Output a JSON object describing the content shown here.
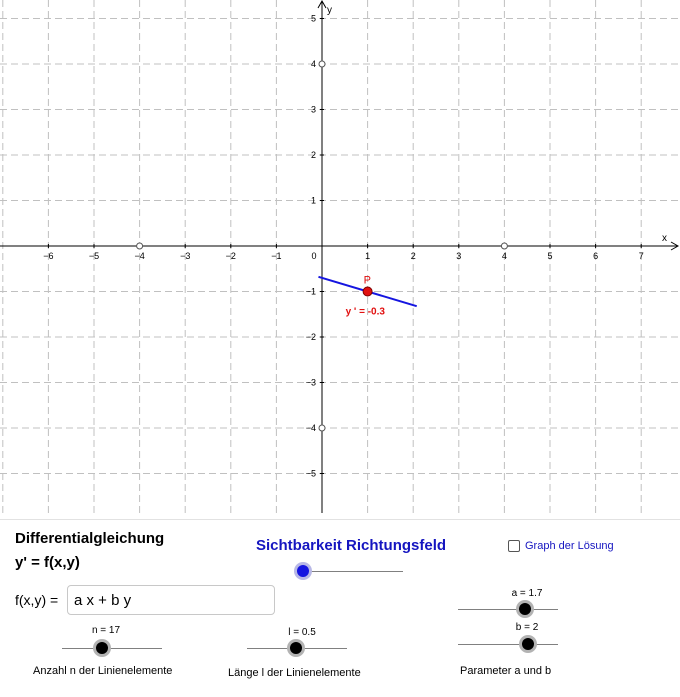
{
  "graph": {
    "x_axis_name": "x",
    "y_axis_name": "y",
    "x_ticks": [
      {
        "v": -6,
        "label": "−6"
      },
      {
        "v": -5,
        "label": "−5"
      },
      {
        "v": -4,
        "label": "−4"
      },
      {
        "v": -3,
        "label": "−3"
      },
      {
        "v": -2,
        "label": "−2"
      },
      {
        "v": -1,
        "label": "−1"
      },
      {
        "v": 1,
        "label": "1"
      },
      {
        "v": 2,
        "label": "2"
      },
      {
        "v": 3,
        "label": "3"
      },
      {
        "v": 4,
        "label": "4"
      },
      {
        "v": 5,
        "label": "5"
      },
      {
        "v": 6,
        "label": "6"
      },
      {
        "v": 7,
        "label": "7"
      }
    ],
    "y_ticks": [
      {
        "v": 5,
        "label": "5"
      },
      {
        "v": 4,
        "label": "4"
      },
      {
        "v": 3,
        "label": "3"
      },
      {
        "v": 2,
        "label": "2"
      },
      {
        "v": 1,
        "label": "1"
      },
      {
        "v": -1,
        "label": "−1"
      },
      {
        "v": -2,
        "label": "−2"
      },
      {
        "v": -3,
        "label": "−3"
      },
      {
        "v": -4,
        "label": "−4"
      },
      {
        "v": -5,
        "label": "−5"
      }
    ],
    "origin_label": "0",
    "x_range": [
      -7,
      7.5
    ],
    "y_range": [
      -5.8,
      5.3
    ],
    "grid": true,
    "window_points": [
      {
        "x": -4,
        "y": 0
      },
      {
        "x": 4,
        "y": 0
      },
      {
        "x": 0,
        "y": 4
      },
      {
        "x": 0,
        "y": -4
      }
    ],
    "point": {
      "name": "P",
      "x": 1,
      "y": -1
    },
    "slope_label": "y ' = -0.3",
    "slope_value": -0.3,
    "colors": {
      "point": "#e11010",
      "tangent": "#1515e0",
      "grid": "#c0c0c0"
    }
  },
  "panel": {
    "title_line1": "Differentialgleichung",
    "title_line2": "y' = f(x,y)",
    "fxy_label": "f(x,y) =",
    "fxy_value": "a x + b y",
    "field_toggle_label": "Sichtbarkeit Richtungsfeld",
    "field_toggle_on": true,
    "solution_checkbox_label": "Graph der Lösung",
    "solution_checked": false,
    "slider_n": {
      "label": "n = 17",
      "value": 17,
      "caption": "Anzahl n der Linienelemente"
    },
    "slider_l": {
      "label": "l = 0.5",
      "value": 0.5,
      "caption": "Länge l der Linienelemente"
    },
    "slider_a": {
      "label": "a = 1.7",
      "value": 1.7
    },
    "slider_b": {
      "label": "b = 2",
      "value": 2
    },
    "params_caption": "Parameter a und b"
  }
}
